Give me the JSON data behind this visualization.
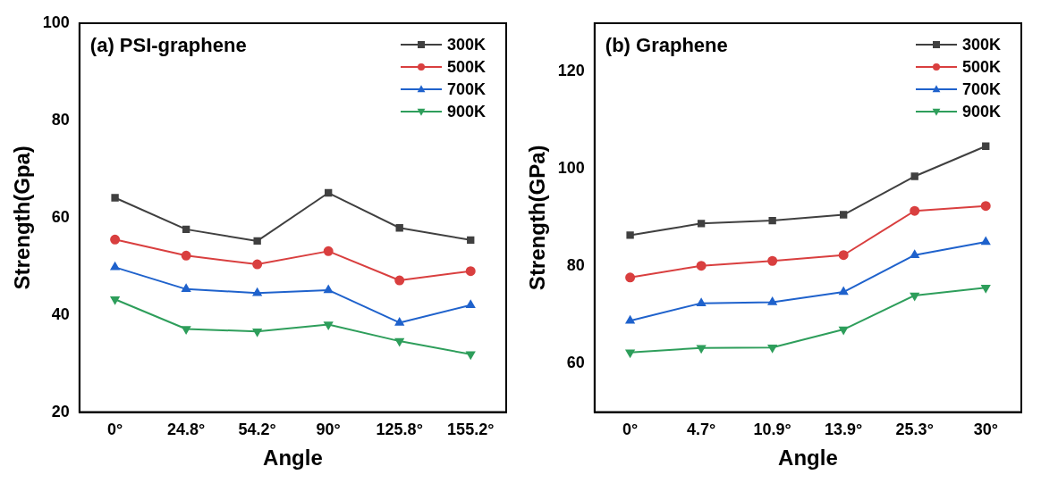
{
  "chart_data": [
    {
      "type": "line",
      "title": "(a) PSI-graphene",
      "xlabel": "Angle",
      "ylabel": "Strength(Gpa)",
      "categories": [
        "0°",
        "24.8°",
        "54.2°",
        "90°",
        "125.8°",
        "155.2°"
      ],
      "ylim": [
        20,
        100
      ],
      "yticks": [
        20,
        40,
        60,
        80,
        100
      ],
      "grid": false,
      "legend": "top right",
      "series": [
        {
          "name": "300K",
          "color": "#404040",
          "marker": "square",
          "values": [
            64.1,
            57.6,
            55.2,
            65.1,
            57.9,
            55.4
          ]
        },
        {
          "name": "500K",
          "color": "#d93f3f",
          "marker": "circle",
          "values": [
            55.5,
            52.2,
            50.4,
            53.1,
            47.1,
            49.0
          ]
        },
        {
          "name": "700K",
          "color": "#1f62cc",
          "marker": "triangle",
          "values": [
            49.8,
            45.3,
            44.5,
            45.1,
            38.4,
            42.0
          ]
        },
        {
          "name": "900K",
          "color": "#2e9e5b",
          "marker": "triangle-down",
          "values": [
            43.2,
            37.1,
            36.6,
            38.0,
            34.6,
            31.9
          ]
        }
      ]
    },
    {
      "type": "line",
      "title": "(b) Graphene",
      "xlabel": "Angle",
      "ylabel": "Strength(GPa)",
      "categories": [
        "0°",
        "4.7°",
        "10.9°",
        "13.9°",
        "25.3°",
        "30°"
      ],
      "ylim": [
        50,
        130
      ],
      "yticks": [
        60,
        80,
        100,
        120
      ],
      "grid": false,
      "legend": "top right",
      "series": [
        {
          "name": "300K",
          "color": "#404040",
          "marker": "square",
          "values": [
            86.4,
            88.8,
            89.4,
            90.6,
            98.5,
            104.7
          ]
        },
        {
          "name": "500K",
          "color": "#d93f3f",
          "marker": "circle",
          "values": [
            77.7,
            80.1,
            81.1,
            82.3,
            91.4,
            92.4
          ]
        },
        {
          "name": "700K",
          "color": "#1f62cc",
          "marker": "triangle",
          "values": [
            68.8,
            72.4,
            72.6,
            74.7,
            82.3,
            85.0
          ]
        },
        {
          "name": "900K",
          "color": "#2e9e5b",
          "marker": "triangle-down",
          "values": [
            62.3,
            63.2,
            63.3,
            67.0,
            74.0,
            75.6
          ]
        }
      ]
    }
  ]
}
